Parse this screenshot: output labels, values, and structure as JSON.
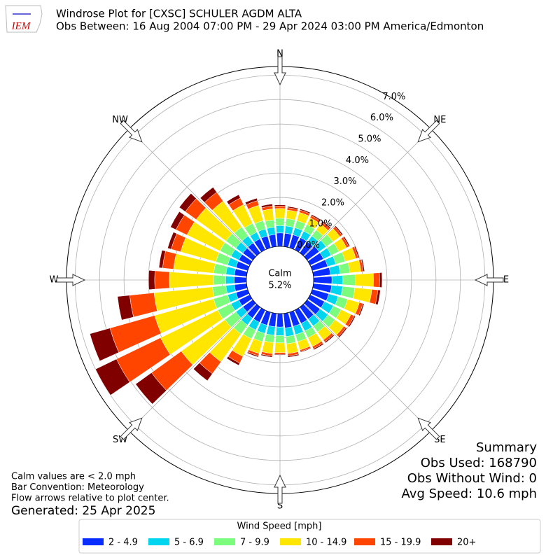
{
  "chart_data": {
    "type": "windrose",
    "logo": "IEM",
    "title": "Windrose Plot for [CXSC] SCHULER AGDM  ALTA",
    "subtitle": "Obs Between: 16 Aug 2004 07:00 PM - 29 Apr 2024 03:00 PM America/Edmonton",
    "x": [
      0,
      10,
      20,
      30,
      40,
      50,
      60,
      70,
      80,
      90,
      100,
      110,
      120,
      130,
      140,
      150,
      160,
      170,
      180,
      190,
      200,
      210,
      220,
      230,
      240,
      250,
      260,
      270,
      280,
      290,
      300,
      310,
      320,
      330,
      340,
      350
    ],
    "xlim": [
      0,
      360
    ],
    "xticks": [
      {
        "value": 0,
        "label": "N"
      },
      {
        "value": 45,
        "label": "NE"
      },
      {
        "value": 90,
        "label": "E"
      },
      {
        "value": 135,
        "label": "SE"
      },
      {
        "value": 180,
        "label": "S"
      },
      {
        "value": 225,
        "label": "SW"
      },
      {
        "value": 270,
        "label": "W"
      },
      {
        "value": 315,
        "label": "NW"
      }
    ],
    "ylim": [
      0,
      7.35
    ],
    "yticks": [
      {
        "value": 0,
        "label": "0.0%"
      },
      {
        "value": 1,
        "label": "1.0%"
      },
      {
        "value": 2,
        "label": "2.0%"
      },
      {
        "value": 3,
        "label": "3.0%"
      },
      {
        "value": 4,
        "label": "4.0%"
      },
      {
        "value": 5,
        "label": "5.0%"
      },
      {
        "value": 6,
        "label": "6.0%"
      },
      {
        "value": 7,
        "label": "7.0%"
      }
    ],
    "grid": true,
    "calm": {
      "label": "Calm",
      "values": [
        5.2
      ],
      "value_labels": [
        "5.2%"
      ]
    },
    "legend_title": "Wind Speed [mph]",
    "series": [
      {
        "name": "2 - 4.9",
        "color": "#0a2dff",
        "values": [
          0.55,
          0.55,
          0.55,
          0.55,
          0.55,
          0.6,
          0.6,
          0.65,
          0.7,
          0.75,
          0.75,
          0.7,
          0.65,
          0.65,
          0.6,
          0.6,
          0.6,
          0.6,
          0.55,
          0.55,
          0.55,
          0.55,
          0.55,
          0.5,
          0.5,
          0.5,
          0.5,
          0.5,
          0.5,
          0.5,
          0.5,
          0.5,
          0.5,
          0.5,
          0.5,
          0.5
        ]
      },
      {
        "name": "5 - 6.9",
        "color": "#00d5f0",
        "values": [
          0.3,
          0.3,
          0.3,
          0.3,
          0.3,
          0.35,
          0.35,
          0.35,
          0.4,
          0.45,
          0.45,
          0.4,
          0.4,
          0.4,
          0.35,
          0.35,
          0.35,
          0.35,
          0.35,
          0.35,
          0.35,
          0.35,
          0.35,
          0.35,
          0.35,
          0.35,
          0.35,
          0.35,
          0.35,
          0.35,
          0.35,
          0.35,
          0.35,
          0.3,
          0.3,
          0.3
        ]
      },
      {
        "name": "7 - 9.9",
        "color": "#7cfc7c",
        "values": [
          0.3,
          0.3,
          0.3,
          0.3,
          0.3,
          0.35,
          0.35,
          0.4,
          0.4,
          0.5,
          0.5,
          0.4,
          0.35,
          0.35,
          0.3,
          0.3,
          0.3,
          0.3,
          0.3,
          0.3,
          0.35,
          0.4,
          0.45,
          0.55,
          0.6,
          0.6,
          0.55,
          0.5,
          0.5,
          0.5,
          0.5,
          0.5,
          0.45,
          0.4,
          0.35,
          0.3
        ]
      },
      {
        "name": "10 - 14.9",
        "color": "#ffe600",
        "values": [
          0.4,
          0.35,
          0.35,
          0.3,
          0.3,
          0.35,
          0.35,
          0.45,
          0.45,
          0.75,
          0.7,
          0.5,
          0.45,
          0.45,
          0.4,
          0.4,
          0.35,
          0.4,
          0.4,
          0.45,
          0.5,
          0.8,
          1.4,
          2.2,
          2.6,
          2.5,
          2.4,
          1.8,
          1.65,
          1.5,
          1.5,
          1.5,
          1.3,
          0.85,
          0.65,
          0.45
        ]
      },
      {
        "name": "15 - 19.9",
        "color": "#ff4500",
        "values": [
          0.1,
          0.1,
          0.1,
          0.1,
          0.1,
          0.1,
          0.1,
          0.1,
          0.1,
          0.25,
          0.25,
          0.15,
          0.15,
          0.1,
          0.1,
          0.1,
          0.07,
          0.1,
          0.07,
          0.1,
          0.1,
          0.3,
          0.6,
          1.5,
          2.0,
          1.9,
          1.0,
          0.6,
          0.45,
          0.4,
          0.5,
          0.55,
          0.45,
          0.3,
          0.2,
          0.12
        ]
      },
      {
        "name": "20+",
        "color": "#800000",
        "values": [
          0.05,
          0.05,
          0.05,
          0.05,
          0.05,
          0.05,
          0.05,
          0.05,
          0.05,
          0.1,
          0.1,
          0.05,
          0.05,
          0.05,
          0.05,
          0.05,
          0.03,
          0.05,
          0.03,
          0.05,
          0.05,
          0.1,
          0.35,
          0.8,
          0.95,
          0.85,
          0.5,
          0.25,
          0.15,
          0.15,
          0.25,
          0.3,
          0.25,
          0.15,
          0.1,
          0.08
        ]
      }
    ],
    "summary": [
      "Summary",
      "Obs Used: 168790",
      "Obs Without Wind: 0",
      "Avg Speed: 10.6 mph"
    ],
    "notes": [
      "Calm values are < 2.0 mph",
      "Bar Convention: Meteorology",
      "Flow arrows relative to plot center."
    ],
    "generated": "Generated: 25 Apr 2025"
  }
}
